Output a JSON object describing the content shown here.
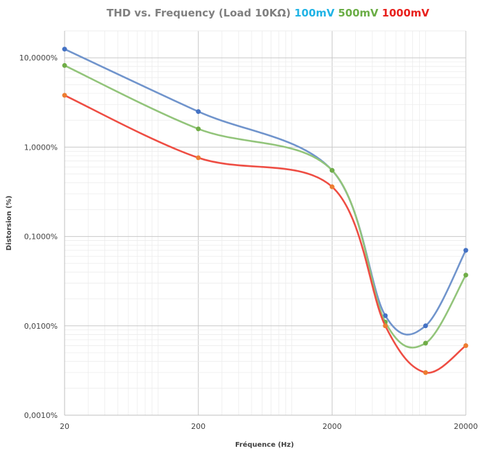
{
  "chart_data": {
    "type": "line",
    "title_parts": [
      {
        "text": "THD vs. Frequency (Load  10KΩ) ",
        "color": "#7f7f7f"
      },
      {
        "text": "100mV ",
        "color": "#1fb3e5"
      },
      {
        "text": "500mV ",
        "color": "#6aad45"
      },
      {
        "text": "1000mV",
        "color": "#e8201c"
      }
    ],
    "xlabel": "Fréquence (Hz)",
    "ylabel": "Distorsion (%)",
    "x_scale": "log",
    "y_scale": "log",
    "xlim": [
      20,
      20000
    ],
    "ylim": [
      0.001,
      20
    ],
    "x_ticks": [
      20,
      200,
      2000,
      20000
    ],
    "x_tick_labels": [
      "20",
      "200",
      "2000",
      "20000"
    ],
    "y_ticks": [
      0.001,
      0.01,
      0.1,
      1,
      10
    ],
    "y_tick_labels": [
      "0,0010%",
      "0,0100%",
      "0,1000%",
      "1,0000%",
      "10,0000%"
    ],
    "grid": true,
    "legend": "none",
    "series": [
      {
        "color": "#7094cc",
        "marker_color": "#4472c4",
        "x": [
          20,
          200,
          2000,
          5000,
          10000,
          20000
        ],
        "y": [
          12.5,
          2.5,
          0.55,
          0.013,
          0.01,
          0.07
        ]
      },
      {
        "color": "#92c47a",
        "marker_color": "#70ad47",
        "x": [
          20,
          200,
          2000,
          5000,
          10000,
          20000
        ],
        "y": [
          8.2,
          1.6,
          0.55,
          0.011,
          0.0064,
          0.037
        ]
      },
      {
        "color": "#ee4d43",
        "marker_color": "#ed7d31",
        "x": [
          20,
          200,
          2000,
          5000,
          10000,
          20000
        ],
        "y": [
          3.8,
          0.76,
          0.36,
          0.01,
          0.003,
          0.006
        ]
      }
    ]
  }
}
